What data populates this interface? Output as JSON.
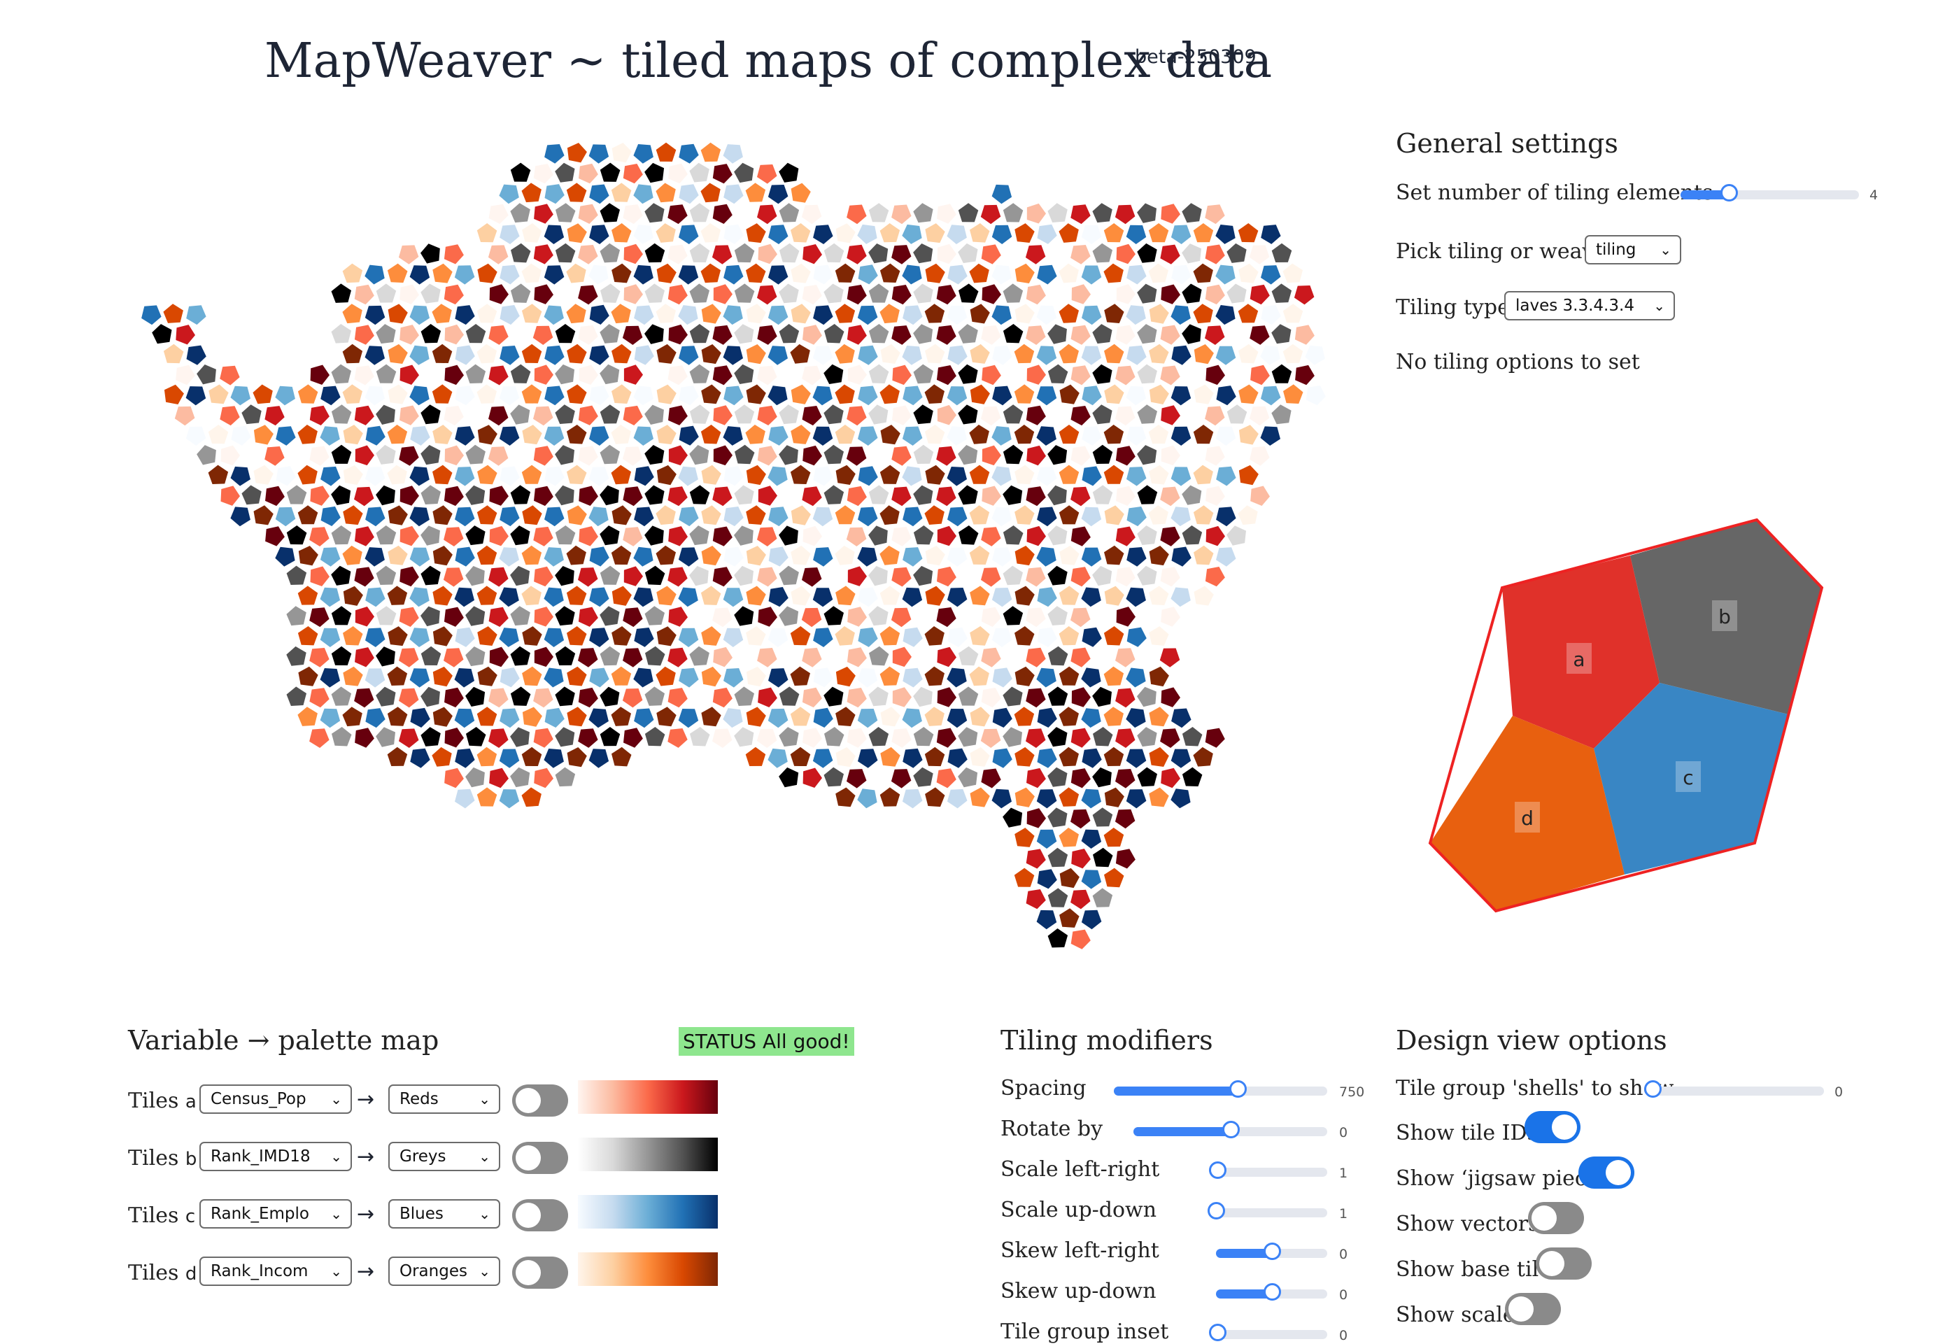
{
  "header": {
    "title": "MapWeaver ~ tiled maps of complex data",
    "version": "beta-250309"
  },
  "general": {
    "heading": "General settings",
    "num_elements_label": "Set number of tiling elements",
    "num_elements_value": "4",
    "num_elements_level": 0.27,
    "tiling_or_weave_label": "Pick tiling or weave",
    "tiling_or_weave_value": "tiling",
    "tiling_type_label": "Tiling type",
    "tiling_type_value": "laves 3.3.4.3.4",
    "no_options_text": "No tiling options to set"
  },
  "base_tile": {
    "labels": [
      "a",
      "b",
      "c",
      "d"
    ],
    "colors": [
      "#e0312a",
      "#666666",
      "#3986c4",
      "#e8600f"
    ]
  },
  "palette_map": {
    "heading": "Variable → palette map",
    "status": "STATUS All good!",
    "arrow": "→",
    "rows": [
      {
        "prefix": "Tiles",
        "id": "a",
        "variable": "Census_Pop",
        "palette": "Reds",
        "ramp": [
          "#fff5f0",
          "#fcbba1",
          "#fb6a4a",
          "#cb181d",
          "#67000d"
        ]
      },
      {
        "prefix": "Tiles",
        "id": "b",
        "variable": "Rank_IMD18",
        "palette": "Greys",
        "ramp": [
          "#ffffff",
          "#d9d9d9",
          "#969696",
          "#525252",
          "#000000"
        ]
      },
      {
        "prefix": "Tiles",
        "id": "c",
        "variable": "Rank_Emplo",
        "palette": "Blues",
        "ramp": [
          "#f7fbff",
          "#c6dbef",
          "#6baed6",
          "#2171b5",
          "#08306b"
        ]
      },
      {
        "prefix": "Tiles",
        "id": "d",
        "variable": "Rank_Incom",
        "palette": "Oranges",
        "ramp": [
          "#fff5eb",
          "#fdd0a2",
          "#fd8d3c",
          "#d94801",
          "#7f2704"
        ]
      }
    ]
  },
  "tiling_modifiers": {
    "heading": "Tiling modifiers",
    "items": [
      {
        "label": "Spacing",
        "value": "750",
        "level": 0.58
      },
      {
        "label": "Rotate by",
        "value": "0",
        "level": 0.5
      },
      {
        "label": "Scale left-right",
        "value": "1",
        "level": 0.0
      },
      {
        "label": "Scale up-down",
        "value": "1",
        "level": 0.0
      },
      {
        "label": "Skew left-right",
        "value": "0",
        "level": 0.5
      },
      {
        "label": "Skew up-down",
        "value": "0",
        "level": 0.5
      },
      {
        "label": "Tile group inset",
        "value": "0",
        "level": 0.0
      }
    ]
  },
  "design_view": {
    "heading": "Design view options",
    "shells_label": "Tile group 'shells' to show",
    "shells_value": "0",
    "shells_level": 0.0,
    "toggles": [
      {
        "label": "Show tile IDs",
        "on": true
      },
      {
        "label": "Show ‘jigsaw piece’",
        "on": true
      },
      {
        "label": "Show vectors",
        "on": false
      },
      {
        "label": "Show base tile",
        "on": false
      },
      {
        "label": "Show scale",
        "on": false
      }
    ]
  }
}
